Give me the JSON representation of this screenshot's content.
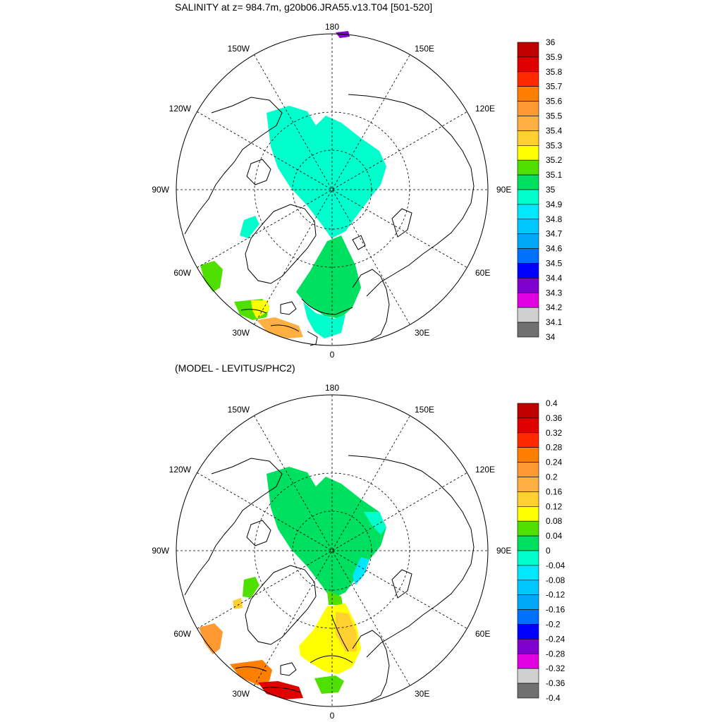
{
  "top_panel": {
    "title": "SALINITY at z= 984.7m, g20b06.JRA55.v13.T04 [501-520]",
    "longitude_labels": [
      "180",
      "150E",
      "120E",
      "90E",
      "60E",
      "30E",
      "0",
      "30W",
      "60W",
      "90W",
      "120W",
      "150W"
    ],
    "colorbar": {
      "labels": [
        "36",
        "35.9",
        "35.8",
        "35.7",
        "35.6",
        "35.5",
        "35.4",
        "35.3",
        "35.2",
        "35.1",
        "35",
        "34.9",
        "34.8",
        "34.7",
        "34.6",
        "34.5",
        "34.4",
        "34.3",
        "34.2",
        "34.1",
        "34"
      ],
      "colors": [
        "#c00000",
        "#e00000",
        "#ff2a00",
        "#ff8000",
        "#ff9a33",
        "#ffb040",
        "#ffd030",
        "#ffff00",
        "#50e000",
        "#00e060",
        "#00ffcc",
        "#00e8ff",
        "#00c8ff",
        "#00a8f8",
        "#0070ff",
        "#0000ff",
        "#8000d0",
        "#e000e0",
        "#d0d0d0",
        "#707070"
      ]
    }
  },
  "bottom_panel": {
    "title": "(MODEL - LEVITUS/PHC2)",
    "longitude_labels": [
      "180",
      "150E",
      "120E",
      "90E",
      "60E",
      "30E",
      "0",
      "30W",
      "60W",
      "90W",
      "120W",
      "150W"
    ],
    "colorbar": {
      "labels": [
        "0.4",
        "0.36",
        "0.32",
        "0.28",
        "0.24",
        "0.2",
        "0.16",
        "0.12",
        "0.08",
        "0.04",
        "0",
        "-0.04",
        "-0.08",
        "-0.12",
        "-0.16",
        "-0.2",
        "-0.24",
        "-0.28",
        "-0.32",
        "-0.36",
        "-0.4"
      ],
      "colors": [
        "#c00000",
        "#e00000",
        "#ff2a00",
        "#ff8000",
        "#ff9a33",
        "#ffb040",
        "#ffd030",
        "#ffff00",
        "#50e000",
        "#00e060",
        "#00ffcc",
        "#00e8ff",
        "#00c8ff",
        "#00a8f8",
        "#0070ff",
        "#0000ff",
        "#8000d0",
        "#e000e0",
        "#d0d0d0",
        "#707070"
      ]
    }
  }
}
